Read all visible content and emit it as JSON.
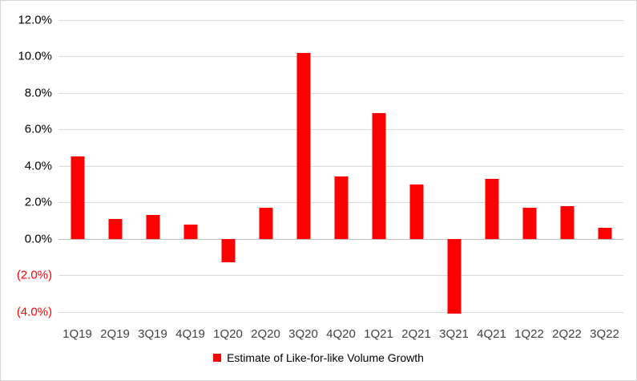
{
  "chart_data": {
    "type": "bar",
    "title": "",
    "series_name": "Estimate of Like-for-like Volume Growth",
    "categories": [
      "1Q19",
      "2Q19",
      "3Q19",
      "4Q19",
      "1Q20",
      "2Q20",
      "3Q20",
      "4Q20",
      "1Q21",
      "2Q21",
      "3Q21",
      "4Q21",
      "1Q22",
      "2Q22",
      "3Q22"
    ],
    "values": [
      4.5,
      1.1,
      1.3,
      0.8,
      -1.3,
      1.7,
      10.2,
      3.4,
      6.9,
      3.0,
      -4.1,
      3.3,
      1.7,
      1.8,
      0.6
    ],
    "ylim": [
      -4.5,
      12
    ],
    "yticks": [
      12,
      10,
      8,
      6,
      4,
      2,
      0,
      -2,
      -4
    ],
    "ytick_labels": [
      "12.0%",
      "10.0%",
      "8.0%",
      "6.0%",
      "4.0%",
      "2.0%",
      "0.0%",
      "(2.0%)",
      "(4.0%)"
    ],
    "xlabel": "",
    "ylabel": "",
    "grid": true,
    "legend_position": "bottom",
    "bar_color": "#ff0000",
    "negative_tick_color": "#ff0000",
    "gridline_color": "#d9d9d9"
  }
}
